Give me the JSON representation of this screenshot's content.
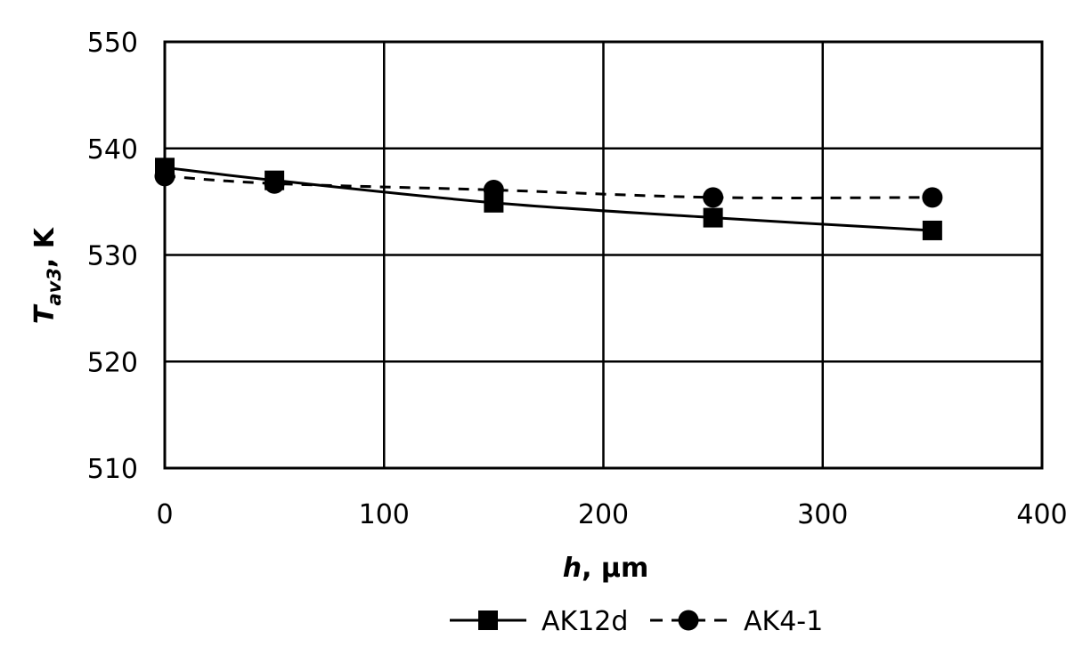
{
  "chart_data": {
    "type": "line",
    "title": "",
    "xlabel": {
      "main": "h",
      "rest": ", μm"
    },
    "ylabel": {
      "main": "T",
      "sub": "av3",
      "rest": ", K"
    },
    "xlim": [
      0,
      400
    ],
    "ylim": [
      510,
      550
    ],
    "xticks": [
      0,
      100,
      200,
      300,
      400
    ],
    "yticks": [
      510,
      520,
      530,
      540,
      550
    ],
    "grid": true,
    "legend_position": "bottom-center",
    "series": [
      {
        "name": "AK12d",
        "marker": "square",
        "line": "solid",
        "color": "#000000",
        "x": [
          0,
          50,
          150,
          250,
          350
        ],
        "y": [
          538.2,
          537.0,
          534.9,
          533.5,
          532.3
        ]
      },
      {
        "name": "AK4-1",
        "marker": "circle",
        "line": "dashed",
        "color": "#000000",
        "x": [
          0,
          50,
          150,
          250,
          350
        ],
        "y": [
          537.4,
          536.7,
          536.1,
          535.4,
          535.4
        ]
      }
    ]
  }
}
